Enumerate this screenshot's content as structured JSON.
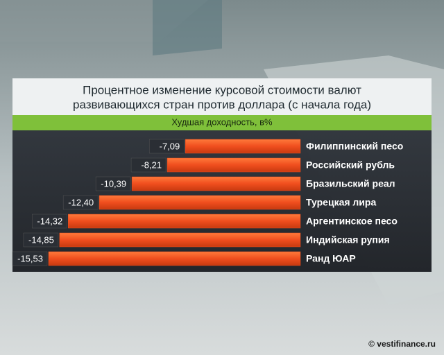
{
  "chart_data": {
    "type": "barh",
    "title": [
      "Процентное изменение курсовой стоимости валют",
      "развивающихся стран против доллара (с начала года)"
    ],
    "subtitle": "Худшая доходность, в%",
    "categories": [
      "Филиппинский песо",
      "Российский рубль",
      "Бразильский реал",
      "Турецкая лира",
      "Аргентинское песо",
      "Индийская рупия",
      "Ранд ЮАР"
    ],
    "values": [
      -7.09,
      -8.21,
      -10.39,
      -12.4,
      -14.32,
      -14.85,
      -15.53
    ],
    "value_labels": [
      "-7,09",
      "-8,21",
      "-10,39",
      "-12,40",
      "-14,32",
      "-14,85",
      "-15,53"
    ],
    "color": "#f04e1e"
  },
  "source": "© vestifinance.ru"
}
